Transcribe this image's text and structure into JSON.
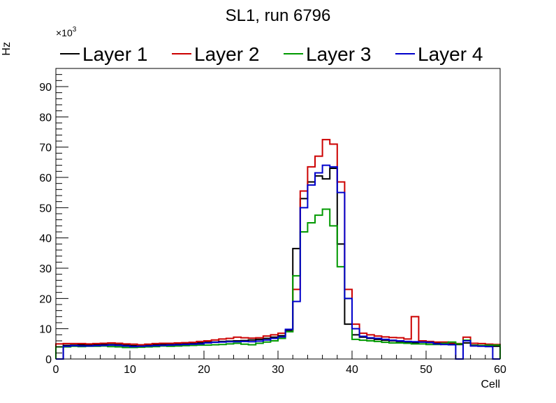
{
  "chart_data": {
    "type": "line",
    "style": "step-histogram",
    "title": "SL1, run 6796",
    "xlabel": "Cell",
    "ylabel": "Hz",
    "y_exponent_label": "×10",
    "y_exponent_power": "3",
    "xlim": [
      0,
      60
    ],
    "ylim": [
      0,
      96
    ],
    "bin_width": 1,
    "x_ticks": [
      0,
      10,
      20,
      30,
      40,
      50,
      60
    ],
    "y_ticks": [
      0,
      10,
      20,
      30,
      40,
      50,
      60,
      70,
      80,
      90
    ],
    "grid": false,
    "legend_position": "top",
    "series": [
      {
        "name": "Layer 1",
        "color": "#000000",
        "values": [
          0,
          4.5,
          4.6,
          4.7,
          4.6,
          4.7,
          4.8,
          4.8,
          4.7,
          4.6,
          4.4,
          4.5,
          4.6,
          4.7,
          4.8,
          4.9,
          5.0,
          5.0,
          5.2,
          5.3,
          5.5,
          5.6,
          5.8,
          5.9,
          6.0,
          6.1,
          6.3,
          6.5,
          6.8,
          7.2,
          7.7,
          9.5,
          36.5,
          53.0,
          58.5,
          60.5,
          59.5,
          63.0,
          38.0,
          11.5,
          8.0,
          7.2,
          6.8,
          6.5,
          6.2,
          6.0,
          5.8,
          5.6,
          5.4,
          5.6,
          5.4,
          5.2,
          5.0,
          5.0,
          4.8,
          5.3,
          4.6,
          4.5,
          4.3,
          4.2
        ]
      },
      {
        "name": "Layer 2",
        "color": "#cc0000",
        "values": [
          5.0,
          5.1,
          5.1,
          5.1,
          5.0,
          5.1,
          5.2,
          5.3,
          5.2,
          5.0,
          4.9,
          4.7,
          4.9,
          5.1,
          5.2,
          5.2,
          5.3,
          5.4,
          5.5,
          5.8,
          6.0,
          6.3,
          6.6,
          6.8,
          7.2,
          7.0,
          6.9,
          7.0,
          7.6,
          8.0,
          8.5,
          9.0,
          23.0,
          55.5,
          63.5,
          67.0,
          72.5,
          71.0,
          58.5,
          23.0,
          11.5,
          8.5,
          8.0,
          7.6,
          7.3,
          7.1,
          7.0,
          6.6,
          14.0,
          6.0,
          5.8,
          5.6,
          5.6,
          5.3,
          5.1,
          7.2,
          5.2,
          5.1,
          4.9,
          4.8
        ]
      },
      {
        "name": "Layer 3",
        "color": "#009900",
        "values": [
          4.0,
          4.0,
          4.2,
          4.1,
          4.2,
          4.2,
          4.3,
          4.1,
          4.0,
          3.8,
          3.8,
          3.9,
          4.0,
          4.1,
          4.3,
          4.2,
          4.3,
          4.4,
          4.5,
          4.6,
          4.6,
          4.7,
          4.8,
          5.0,
          5.2,
          4.9,
          4.7,
          5.2,
          5.6,
          6.0,
          6.8,
          9.0,
          27.5,
          42.0,
          45.0,
          47.5,
          49.5,
          44.0,
          30.5,
          20.0,
          6.5,
          6.2,
          6.0,
          5.8,
          5.5,
          5.3,
          5.3,
          5.2,
          5.0,
          5.0,
          4.8,
          4.8,
          5.2,
          5.6,
          5.0,
          6.2,
          4.5,
          4.5,
          4.6,
          4.6
        ]
      },
      {
        "name": "Layer 4",
        "color": "#0000cc",
        "values": [
          0,
          4.2,
          4.4,
          4.3,
          4.3,
          4.4,
          4.5,
          4.6,
          4.5,
          4.3,
          4.1,
          4.2,
          4.3,
          4.4,
          4.5,
          4.6,
          4.7,
          4.8,
          4.9,
          5.0,
          5.3,
          5.5,
          5.6,
          5.7,
          5.7,
          5.8,
          5.7,
          5.9,
          6.3,
          6.8,
          7.3,
          9.8,
          19.0,
          50.0,
          57.5,
          61.5,
          64.0,
          63.5,
          55.0,
          20.0,
          10.0,
          7.5,
          7.0,
          6.8,
          6.5,
          6.2,
          6.0,
          5.8,
          5.7,
          5.6,
          5.5,
          5.0,
          4.8,
          4.7,
          0,
          6.0,
          4.3,
          4.2,
          4.1,
          0
        ]
      }
    ]
  }
}
